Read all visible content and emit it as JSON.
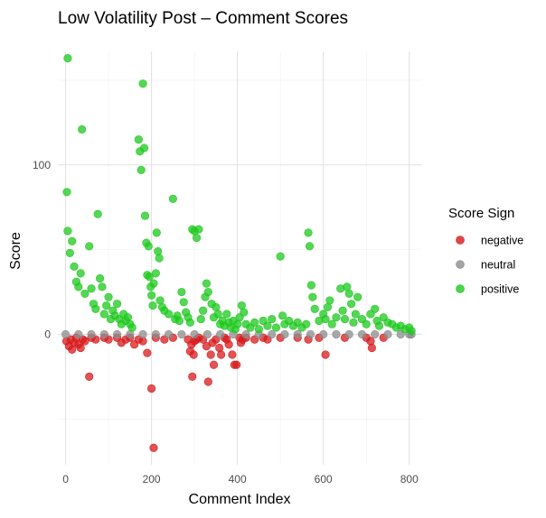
{
  "chart_data": {
    "type": "scatter",
    "title": "Low Volatility Post – Comment Scores",
    "xlabel": "Comment Index",
    "ylabel": "Score",
    "xlim": [
      -18,
      830
    ],
    "ylim": [
      -77,
      167
    ],
    "x_ticks": [
      0,
      200,
      400,
      600,
      800
    ],
    "y_ticks": [
      0,
      100
    ],
    "x_minor_ticks": [
      100,
      300,
      500,
      700
    ],
    "y_minor_ticks": [
      -50,
      50,
      150
    ],
    "grid": true,
    "legend": {
      "title": "Score Sign",
      "position": "right",
      "entries": [
        {
          "label": "negative",
          "color": "#d7191c"
        },
        {
          "label": "neutral",
          "color": "#8c8c8c"
        },
        {
          "label": "positive",
          "color": "#1ec81e"
        }
      ]
    },
    "series": [
      {
        "name": "negative",
        "color": "#d7191c",
        "points": [
          [
            2,
            -4
          ],
          [
            8,
            -7
          ],
          [
            12,
            -3
          ],
          [
            15,
            -9
          ],
          [
            20,
            -5
          ],
          [
            25,
            -2
          ],
          [
            30,
            -6
          ],
          [
            35,
            -8
          ],
          [
            40,
            -3
          ],
          [
            45,
            -4
          ],
          [
            55,
            -25
          ],
          [
            60,
            -2
          ],
          [
            70,
            -3
          ],
          [
            90,
            -2
          ],
          [
            100,
            -3
          ],
          [
            120,
            -2
          ],
          [
            130,
            -5
          ],
          [
            140,
            -3
          ],
          [
            150,
            -2
          ],
          [
            160,
            -6
          ],
          [
            170,
            -3
          ],
          [
            180,
            -4
          ],
          [
            190,
            -11
          ],
          [
            200,
            -32
          ],
          [
            205,
            -67
          ],
          [
            210,
            -2
          ],
          [
            230,
            -3
          ],
          [
            250,
            -2
          ],
          [
            285,
            -3
          ],
          [
            290,
            -10
          ],
          [
            293,
            -6
          ],
          [
            295,
            -25
          ],
          [
            298,
            -12
          ],
          [
            300,
            -4
          ],
          [
            305,
            -3
          ],
          [
            310,
            -2
          ],
          [
            320,
            -3
          ],
          [
            328,
            -7
          ],
          [
            332,
            -28
          ],
          [
            338,
            -12
          ],
          [
            342,
            -5
          ],
          [
            345,
            -18
          ],
          [
            350,
            -3
          ],
          [
            358,
            -8
          ],
          [
            362,
            -12
          ],
          [
            370,
            -2
          ],
          [
            375,
            -3
          ],
          [
            380,
            -6
          ],
          [
            388,
            -12
          ],
          [
            393,
            -18
          ],
          [
            398,
            -18
          ],
          [
            405,
            -2
          ],
          [
            408,
            -5
          ],
          [
            412,
            -3
          ],
          [
            420,
            -2
          ],
          [
            440,
            -3
          ],
          [
            460,
            -2
          ],
          [
            470,
            -3
          ],
          [
            500,
            -2
          ],
          [
            540,
            -2
          ],
          [
            565,
            -3
          ],
          [
            590,
            -2
          ],
          [
            605,
            -12
          ],
          [
            650,
            -2
          ],
          [
            700,
            -2
          ],
          [
            710,
            -4
          ],
          [
            713,
            -8
          ],
          [
            740,
            -2
          ]
        ]
      },
      {
        "name": "neutral",
        "color": "#8c8c8c",
        "points": [
          [
            0,
            0
          ],
          [
            30,
            0
          ],
          [
            60,
            0
          ],
          [
            90,
            0
          ],
          [
            120,
            0
          ],
          [
            150,
            0
          ],
          [
            180,
            0
          ],
          [
            210,
            0
          ],
          [
            240,
            0
          ],
          [
            270,
            0
          ],
          [
            300,
            0
          ],
          [
            330,
            0
          ],
          [
            360,
            0
          ],
          [
            390,
            0
          ],
          [
            420,
            0
          ],
          [
            450,
            0
          ],
          [
            480,
            0
          ],
          [
            510,
            0
          ],
          [
            540,
            0
          ],
          [
            570,
            0
          ],
          [
            600,
            0
          ],
          [
            630,
            0
          ],
          [
            660,
            0
          ],
          [
            690,
            0
          ],
          [
            720,
            0
          ],
          [
            750,
            0
          ],
          [
            780,
            0
          ],
          [
            800,
            0
          ],
          [
            805,
            0
          ]
        ]
      },
      {
        "name": "positive",
        "color": "#1ec81e",
        "points": [
          [
            5,
            163
          ],
          [
            38,
            121
          ],
          [
            3,
            84
          ],
          [
            75,
            71
          ],
          [
            5,
            61
          ],
          [
            10,
            48
          ],
          [
            15,
            55
          ],
          [
            20,
            40
          ],
          [
            25,
            31
          ],
          [
            30,
            28
          ],
          [
            35,
            36
          ],
          [
            45,
            24
          ],
          [
            55,
            52
          ],
          [
            60,
            27
          ],
          [
            65,
            18
          ],
          [
            70,
            15
          ],
          [
            80,
            33
          ],
          [
            85,
            28
          ],
          [
            90,
            12
          ],
          [
            95,
            17
          ],
          [
            100,
            22
          ],
          [
            105,
            9
          ],
          [
            110,
            14
          ],
          [
            115,
            11
          ],
          [
            120,
            18
          ],
          [
            125,
            9
          ],
          [
            130,
            6
          ],
          [
            135,
            12
          ],
          [
            140,
            8
          ],
          [
            145,
            10
          ],
          [
            150,
            6
          ],
          [
            155,
            4
          ],
          [
            170,
            115
          ],
          [
            173,
            108
          ],
          [
            176,
            97
          ],
          [
            180,
            148
          ],
          [
            183,
            110
          ],
          [
            185,
            70
          ],
          [
            188,
            54
          ],
          [
            190,
            35
          ],
          [
            193,
            52
          ],
          [
            195,
            34
          ],
          [
            198,
            28
          ],
          [
            200,
            23
          ],
          [
            203,
            17
          ],
          [
            205,
            30
          ],
          [
            210,
            36
          ],
          [
            212,
            60
          ],
          [
            215,
            49
          ],
          [
            218,
            45
          ],
          [
            220,
            20
          ],
          [
            225,
            16
          ],
          [
            230,
            14
          ],
          [
            240,
            12
          ],
          [
            250,
            80
          ],
          [
            255,
            9
          ],
          [
            260,
            11
          ],
          [
            265,
            8
          ],
          [
            270,
            25
          ],
          [
            275,
            19
          ],
          [
            280,
            13
          ],
          [
            285,
            10
          ],
          [
            290,
            7
          ],
          [
            295,
            62
          ],
          [
            300,
            61
          ],
          [
            305,
            57
          ],
          [
            310,
            62
          ],
          [
            315,
            9
          ],
          [
            320,
            14
          ],
          [
            325,
            22
          ],
          [
            328,
            30
          ],
          [
            332,
            25
          ],
          [
            340,
            18
          ],
          [
            345,
            10
          ],
          [
            350,
            16
          ],
          [
            355,
            12
          ],
          [
            360,
            6
          ],
          [
            365,
            8
          ],
          [
            370,
            5
          ],
          [
            375,
            12
          ],
          [
            380,
            7
          ],
          [
            385,
            4
          ],
          [
            390,
            8
          ],
          [
            395,
            3
          ],
          [
            400,
            6
          ],
          [
            405,
            10
          ],
          [
            410,
            17
          ],
          [
            415,
            13
          ],
          [
            420,
            6
          ],
          [
            430,
            4
          ],
          [
            440,
            7
          ],
          [
            450,
            3
          ],
          [
            460,
            8
          ],
          [
            470,
            5
          ],
          [
            480,
            9
          ],
          [
            490,
            4
          ],
          [
            500,
            46
          ],
          [
            505,
            11
          ],
          [
            510,
            6
          ],
          [
            520,
            8
          ],
          [
            530,
            5
          ],
          [
            540,
            7
          ],
          [
            550,
            4
          ],
          [
            560,
            6
          ],
          [
            565,
            60
          ],
          [
            568,
            52
          ],
          [
            572,
            29
          ],
          [
            575,
            22
          ],
          [
            580,
            15
          ],
          [
            590,
            8
          ],
          [
            600,
            12
          ],
          [
            605,
            9
          ],
          [
            610,
            16
          ],
          [
            615,
            20
          ],
          [
            620,
            6
          ],
          [
            630,
            10
          ],
          [
            640,
            27
          ],
          [
            645,
            14
          ],
          [
            650,
            9
          ],
          [
            655,
            28
          ],
          [
            660,
            24
          ],
          [
            665,
            18
          ],
          [
            670,
            7
          ],
          [
            675,
            12
          ],
          [
            680,
            22
          ],
          [
            690,
            9
          ],
          [
            700,
            6
          ],
          [
            710,
            12
          ],
          [
            720,
            15
          ],
          [
            725,
            8
          ],
          [
            730,
            5
          ],
          [
            740,
            10
          ],
          [
            750,
            7
          ],
          [
            760,
            6
          ],
          [
            770,
            4
          ],
          [
            780,
            5
          ],
          [
            790,
            3
          ],
          [
            800,
            4
          ],
          [
            805,
            2
          ]
        ]
      }
    ]
  }
}
